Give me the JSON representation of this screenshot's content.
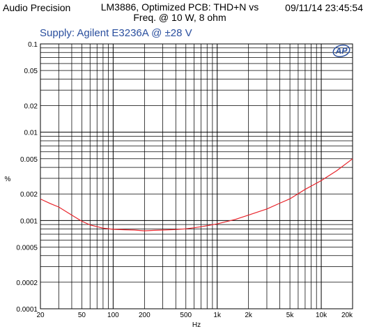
{
  "header": {
    "left": "Audio Precision",
    "title_line1": "LM3886, Optimized PCB: THD+N vs",
    "title_line2": "Freq. @ 10 W, 8 ohm",
    "timestamp": "09/11/14 23:45:54"
  },
  "supply_label": "Supply: Agilent E3236A @ ±28 V",
  "logo_text": "AP",
  "chart_data": {
    "type": "line",
    "xlabel": "Hz",
    "ylabel": "%",
    "x_scale": "log",
    "y_scale": "log",
    "xlim": [
      20,
      20000
    ],
    "ylim": [
      0.0001,
      0.1
    ],
    "grid": true,
    "x_tick_labels": [
      {
        "value": 20,
        "label": "20"
      },
      {
        "value": 50,
        "label": "50"
      },
      {
        "value": 100,
        "label": "100"
      },
      {
        "value": 200,
        "label": "200"
      },
      {
        "value": 500,
        "label": "500"
      },
      {
        "value": 1000,
        "label": "1k"
      },
      {
        "value": 2000,
        "label": "2k"
      },
      {
        "value": 5000,
        "label": "5k"
      },
      {
        "value": 10000,
        "label": "10k"
      },
      {
        "value": 20000,
        "label": "20k"
      }
    ],
    "y_tick_labels": [
      {
        "value": 0.1,
        "label": "0.1"
      },
      {
        "value": 0.05,
        "label": "0.05"
      },
      {
        "value": 0.02,
        "label": "0.02"
      },
      {
        "value": 0.01,
        "label": "0.01"
      },
      {
        "value": 0.005,
        "label": "0.005"
      },
      {
        "value": 0.002,
        "label": "0.002"
      },
      {
        "value": 0.001,
        "label": "0.001"
      },
      {
        "value": 0.0005,
        "label": "0.0005"
      },
      {
        "value": 0.0002,
        "label": "0.0002"
      },
      {
        "value": 0.0001,
        "label": "0.0001"
      }
    ],
    "series": [
      {
        "color": "#e8232a",
        "x": [
          20,
          25,
          30,
          40,
          50,
          60,
          80,
          100,
          130,
          160,
          200,
          250,
          300,
          400,
          500,
          700,
          1000,
          1500,
          2000,
          3000,
          4000,
          5000,
          7000,
          10000,
          14000,
          20000
        ],
        "y": [
          0.00175,
          0.00155,
          0.00142,
          0.00115,
          0.00098,
          0.00089,
          0.00082,
          0.000795,
          0.000785,
          0.00078,
          0.000765,
          0.000775,
          0.00078,
          0.00079,
          0.000805,
          0.00085,
          0.000915,
          0.00103,
          0.00115,
          0.00135,
          0.00157,
          0.00176,
          0.00225,
          0.00283,
          0.00365,
          0.005
        ]
      }
    ]
  }
}
